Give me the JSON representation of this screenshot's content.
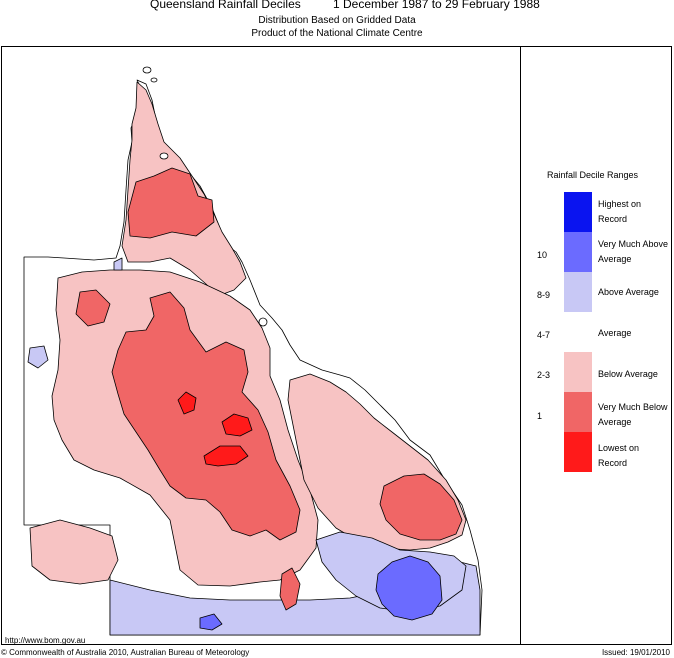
{
  "title": {
    "main": "Queensland Rainfall Deciles",
    "period": "1 December 1987 to 29 February 1988",
    "subtitle1": "Distribution Based on Gridded Data",
    "subtitle2": "Product of the National Climate Centre"
  },
  "legend": {
    "title": "Rainfall Decile Ranges",
    "ranges": [
      {
        "label": "Highest on Record",
        "code": "",
        "color": "#0a14f0"
      },
      {
        "label": "Very Much Above Average",
        "code": "10",
        "color": "#6b6bff"
      },
      {
        "label": "Above Average",
        "code": "8-9",
        "color": "#c8c8f5"
      },
      {
        "label": "Average",
        "code": "4-7",
        "color": "#ffffff"
      },
      {
        "label": "Below Average",
        "code": "2-3",
        "color": "#f7c3c3"
      },
      {
        "label": "Very Much Below Average",
        "code": "1",
        "color": "#f06666"
      },
      {
        "label": "Lowest on Record",
        "code": "",
        "color": "#ff1a1a"
      }
    ]
  },
  "footer": {
    "url": "http://www.bom.gov.au",
    "copyright": "© Commonwealth of Australia 2010, Australian Bureau of Meteorology",
    "issued": "Issued: 19/01/2010"
  }
}
